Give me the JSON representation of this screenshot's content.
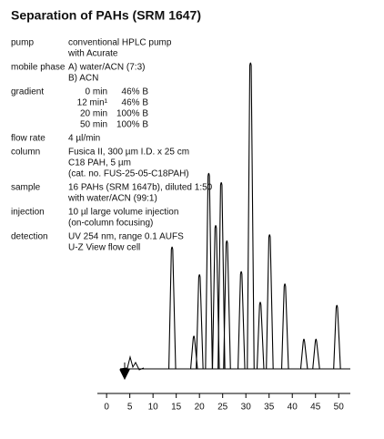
{
  "title": "Separation of PAHs (SRM 1647)",
  "method": [
    {
      "label": "pump",
      "lines": [
        "conventional HPLC pump",
        "with Acurate"
      ]
    },
    {
      "label": "mobile phase",
      "lines": [
        "A) water/ACN (7:3)",
        "B) ACN"
      ]
    },
    {
      "label": "gradient",
      "rows": [
        [
          "0 min",
          "46% B"
        ],
        [
          "12 min¹",
          "46% B"
        ],
        [
          "20 min",
          "100% B"
        ],
        [
          "50 min",
          "100% B"
        ]
      ]
    },
    {
      "label": "flow rate",
      "lines": [
        "4 µl/min"
      ]
    },
    {
      "label": "column",
      "lines": [
        "Fusica II, 300 µm I.D. x 25 cm",
        "C18 PAH, 5 µm",
        "(cat. no. FUS-25-05-C18PAH)"
      ]
    },
    {
      "label": "sample",
      "lines": [
        "16 PAHs (SRM 1647b), diluted 1:50",
        "with water/ACN (99:1)"
      ]
    },
    {
      "label": "injection",
      "lines": [
        "10 µl  large volume injection",
        "(on-column focusing)"
      ]
    },
    {
      "label": "detection",
      "lines": [
        "UV 254 nm, range 0.1 AUFS",
        "U-Z View flow cell"
      ]
    }
  ],
  "chart_data": {
    "type": "line",
    "x": [
      14.1,
      18.8,
      20.0,
      22.0,
      23.5,
      24.7,
      25.9,
      29.0,
      31.0,
      33.1,
      35.1,
      38.4,
      42.5,
      45.1,
      49.6
    ],
    "values": [
      40,
      11,
      31,
      64,
      47,
      61,
      42,
      32,
      100,
      22,
      44,
      28,
      10,
      10,
      21
    ],
    "color": "#000000",
    "xlim": [
      -1.4,
      52.5
    ],
    "xticks": [
      0,
      5,
      10,
      15,
      20,
      25,
      30,
      35,
      40,
      45,
      50
    ],
    "ylim": [
      0,
      100
    ]
  }
}
